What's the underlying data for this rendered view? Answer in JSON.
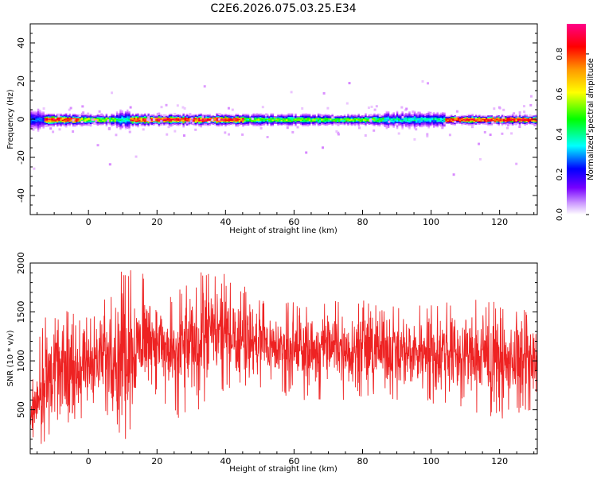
{
  "page": {
    "title": "C2E6.2026.075.03.25.E34"
  },
  "chart_data": [
    {
      "type": "heatmap",
      "title": "C2E6.2026.075.03.25.E34",
      "xlabel": "Height of straight line (km)",
      "ylabel": "Frequency (Hz)",
      "xlim": [
        -17,
        131
      ],
      "ylim": [
        -50,
        50
      ],
      "xticks": [
        0,
        20,
        40,
        60,
        80,
        100,
        120
      ],
      "yticks": [
        -40,
        -20,
        0,
        20,
        40
      ],
      "grid": false,
      "colorbar": {
        "label": "Normalized spectral amplitude",
        "range": [
          0,
          0.95
        ],
        "ticks": [
          0.0,
          0.2,
          0.4,
          0.6,
          0.8
        ],
        "tick_labels": [
          "0.0",
          "0.2",
          "0.4",
          "0.6",
          "0.8"
        ],
        "colormap": [
          "#ffffff",
          "#cc66ff",
          "#6600ff",
          "#0000ff",
          "#00ffff",
          "#00ff00",
          "#ffff00",
          "#ff8800",
          "#ff0000",
          "#ff0088"
        ]
      },
      "band": {
        "center_freq_hz": 0,
        "core_halfwidth_hz": 1,
        "segments": [
          {
            "x_start": -17,
            "x_end": -13,
            "peak": 0.35,
            "halfwidth_hz": 5
          },
          {
            "x_start": -13,
            "x_end": -3,
            "peak": 0.85,
            "halfwidth_hz": 2.5
          },
          {
            "x_start": -3,
            "x_end": 8,
            "peak": 0.6,
            "halfwidth_hz": 2.5
          },
          {
            "x_start": 8,
            "x_end": 12,
            "peak": 0.45,
            "halfwidth_hz": 4
          },
          {
            "x_start": 12,
            "x_end": 45,
            "peak": 0.85,
            "halfwidth_hz": 2.5
          },
          {
            "x_start": 45,
            "x_end": 86,
            "peak": 0.55,
            "halfwidth_hz": 2.5
          },
          {
            "x_start": 86,
            "x_end": 104,
            "peak": 0.45,
            "halfwidth_hz": 3.5
          },
          {
            "x_start": 104,
            "x_end": 131,
            "peak": 0.85,
            "halfwidth_hz": 2
          }
        ]
      }
    },
    {
      "type": "line",
      "xlabel": "Height of straight line (km)",
      "ylabel": "SNR (10 * v/v)",
      "xlim": [
        -17,
        131
      ],
      "ylim": [
        50,
        2000
      ],
      "xticks": [
        0,
        20,
        40,
        60,
        80,
        100,
        120
      ],
      "yticks": [
        500,
        1000,
        1500,
        2000
      ],
      "grid": false,
      "series": [
        {
          "color": "#ee2222",
          "envelope": [
            {
              "x": -17,
              "min": 100,
              "max": 800
            },
            {
              "x": -12,
              "min": 150,
              "max": 1600
            },
            {
              "x": -5,
              "min": 300,
              "max": 1500
            },
            {
              "x": 0,
              "min": 400,
              "max": 1450
            },
            {
              "x": 5,
              "min": 450,
              "max": 1650
            },
            {
              "x": 11,
              "min": 150,
              "max": 2000
            },
            {
              "x": 18,
              "min": 700,
              "max": 1850
            },
            {
              "x": 25,
              "min": 400,
              "max": 1650
            },
            {
              "x": 30,
              "min": 450,
              "max": 1950
            },
            {
              "x": 40,
              "min": 700,
              "max": 1900
            },
            {
              "x": 50,
              "min": 700,
              "max": 1650
            },
            {
              "x": 60,
              "min": 600,
              "max": 1600
            },
            {
              "x": 70,
              "min": 600,
              "max": 1650
            },
            {
              "x": 80,
              "min": 600,
              "max": 1650
            },
            {
              "x": 90,
              "min": 600,
              "max": 1600
            },
            {
              "x": 100,
              "min": 550,
              "max": 1600
            },
            {
              "x": 110,
              "min": 500,
              "max": 1650
            },
            {
              "x": 120,
              "min": 400,
              "max": 1600
            },
            {
              "x": 131,
              "min": 500,
              "max": 1500
            }
          ]
        }
      ]
    }
  ]
}
